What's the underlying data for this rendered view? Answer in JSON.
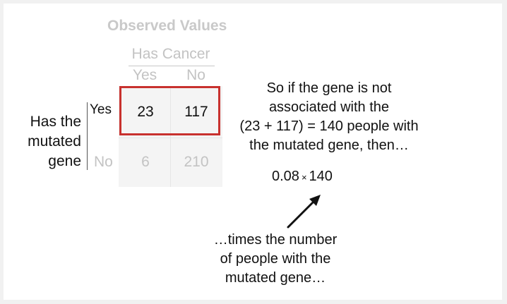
{
  "title": "Observed Values",
  "columns": {
    "group_label": "Has Cancer",
    "yes_label": "Yes",
    "no_label": "No"
  },
  "rows": {
    "group_label_lines": [
      "Has the",
      "mutated",
      "gene"
    ],
    "yes_label": "Yes",
    "no_label": "No"
  },
  "cells": {
    "yes_yes": "23",
    "yes_no": "117",
    "no_yes": "6",
    "no_no": "210"
  },
  "explanation_lines": [
    "So if the gene is not",
    "associated with the",
    "(23 + 117) = 140 people with",
    "the mutated gene, then…"
  ],
  "formula": {
    "left": "0.08",
    "op": "×",
    "right": "140"
  },
  "note_lines": [
    "…times the number",
    "of people with the",
    "mutated gene…"
  ],
  "colors": {
    "highlight": "#c8312e",
    "muted_text": "#c3c3c3",
    "text": "#111111"
  }
}
